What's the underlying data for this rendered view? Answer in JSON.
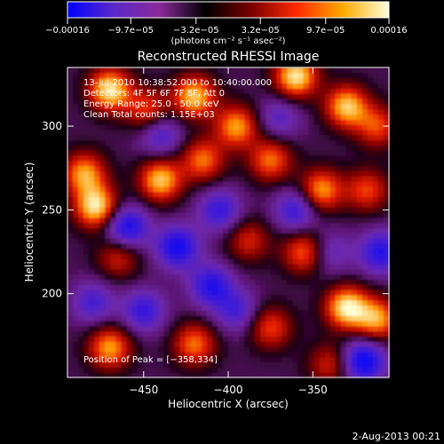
{
  "chart_data": {
    "type": "heatmap",
    "title": "Reconstructed RHESSI Image",
    "xlabel": "Heliocentric X (arcsec)",
    "ylabel": "Heliocentric Y (arcsec)",
    "xlim": [
      -495,
      -305
    ],
    "ylim": [
      150,
      335
    ],
    "x_ticks": [
      -450,
      -400,
      -350
    ],
    "x_tick_labels": [
      "−450",
      "−400",
      "−350"
    ],
    "y_ticks": [
      200,
      250,
      300
    ],
    "y_tick_labels": [
      "200",
      "250",
      "300"
    ],
    "colorbar": {
      "range": [
        -0.00016,
        0.00016
      ],
      "tick_values": [
        -0.00016,
        -9.7e-05,
        -3.2e-05,
        3.2e-05,
        9.7e-05,
        0.00016
      ],
      "tick_labels": [
        "−0.00016",
        "−9.7e−05",
        "−3.2e−05",
        "3.2e−05",
        "9.7e−05",
        "0.00016"
      ],
      "unit_label": "(photons cm⁻² s⁻¹ asec⁻²)",
      "colors": [
        "#0000ff",
        "#5a28c8",
        "#8a2a9a",
        "#000000",
        "#7a0000",
        "#ff2a00",
        "#ffaa00",
        "#ffffdd"
      ]
    },
    "info_lines": [
      "13-Jul-2010 10:38:52.000 to 10:40:00.000",
      "Detectors: 4F 5F 6F 7F 8F, Att 0",
      "Energy Range: 25.0 - 50.0 keV",
      "Clean    Total counts: 1.15E+03"
    ],
    "peak_label": "Position of Peak = [−358,334]",
    "peak_position": [
      -358,
      334
    ],
    "sources": [
      {
        "x": -470,
        "y": 322,
        "v": 1.0
      },
      {
        "x": -448,
        "y": 310,
        "v": 0.6
      },
      {
        "x": -420,
        "y": 318,
        "v": 0.9
      },
      {
        "x": -395,
        "y": 300,
        "v": 0.8
      },
      {
        "x": -360,
        "y": 330,
        "v": 1.0
      },
      {
        "x": -330,
        "y": 312,
        "v": 0.9
      },
      {
        "x": -312,
        "y": 300,
        "v": 0.6
      },
      {
        "x": -485,
        "y": 272,
        "v": 0.8
      },
      {
        "x": -478,
        "y": 252,
        "v": 1.0
      },
      {
        "x": -440,
        "y": 268,
        "v": 0.9
      },
      {
        "x": -415,
        "y": 280,
        "v": 0.7
      },
      {
        "x": -375,
        "y": 280,
        "v": 0.7
      },
      {
        "x": -345,
        "y": 262,
        "v": 0.8
      },
      {
        "x": -318,
        "y": 262,
        "v": 0.6
      },
      {
        "x": -355,
        "y": 225,
        "v": 0.7
      },
      {
        "x": -465,
        "y": 222,
        "v": 0.5
      },
      {
        "x": -388,
        "y": 232,
        "v": 0.5
      },
      {
        "x": -330,
        "y": 192,
        "v": 1.0
      },
      {
        "x": -312,
        "y": 185,
        "v": 0.8
      },
      {
        "x": -375,
        "y": 180,
        "v": 0.6
      },
      {
        "x": -420,
        "y": 170,
        "v": 0.7
      },
      {
        "x": -470,
        "y": 168,
        "v": 0.8
      },
      {
        "x": -340,
        "y": 158,
        "v": 0.5
      },
      {
        "x": -460,
        "y": 240,
        "v": -0.8
      },
      {
        "x": -430,
        "y": 228,
        "v": -0.8
      },
      {
        "x": -410,
        "y": 205,
        "v": -0.7
      },
      {
        "x": -360,
        "y": 250,
        "v": -0.6
      },
      {
        "x": -405,
        "y": 250,
        "v": -0.6
      },
      {
        "x": -310,
        "y": 225,
        "v": -0.7
      },
      {
        "x": -450,
        "y": 190,
        "v": -0.6
      },
      {
        "x": -395,
        "y": 190,
        "v": -0.5
      },
      {
        "x": -340,
        "y": 225,
        "v": -0.4
      },
      {
        "x": -320,
        "y": 160,
        "v": -0.9
      },
      {
        "x": -480,
        "y": 195,
        "v": -0.5
      },
      {
        "x": -370,
        "y": 305,
        "v": -0.4
      },
      {
        "x": -440,
        "y": 295,
        "v": -0.5
      }
    ]
  },
  "footer": {
    "date": "2-Aug-2013 00:21"
  }
}
